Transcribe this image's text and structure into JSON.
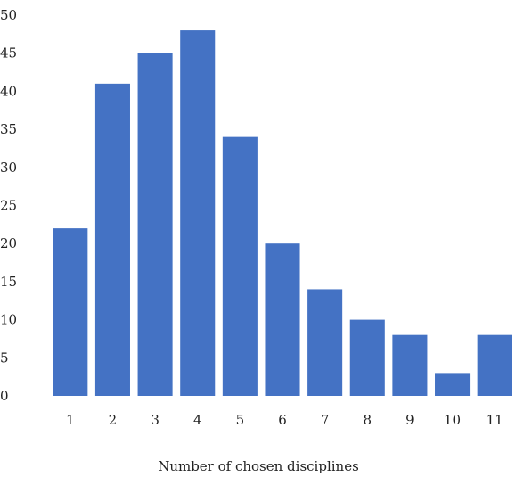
{
  "chart_data": {
    "type": "bar",
    "title": "",
    "xlabel": "Number of chosen disciplines",
    "ylabel": "",
    "categories": [
      "1",
      "2",
      "3",
      "4",
      "5",
      "6",
      "7",
      "8",
      "9",
      "10",
      "11"
    ],
    "values": [
      22,
      41,
      45,
      48,
      34,
      20,
      14,
      10,
      8,
      3,
      8
    ],
    "ylim": [
      0,
      50
    ],
    "yticks": [
      0,
      5,
      10,
      15,
      20,
      25,
      30,
      35,
      40,
      45,
      50
    ],
    "grid": false,
    "legend": "none",
    "bar_color": "#4472C4"
  }
}
